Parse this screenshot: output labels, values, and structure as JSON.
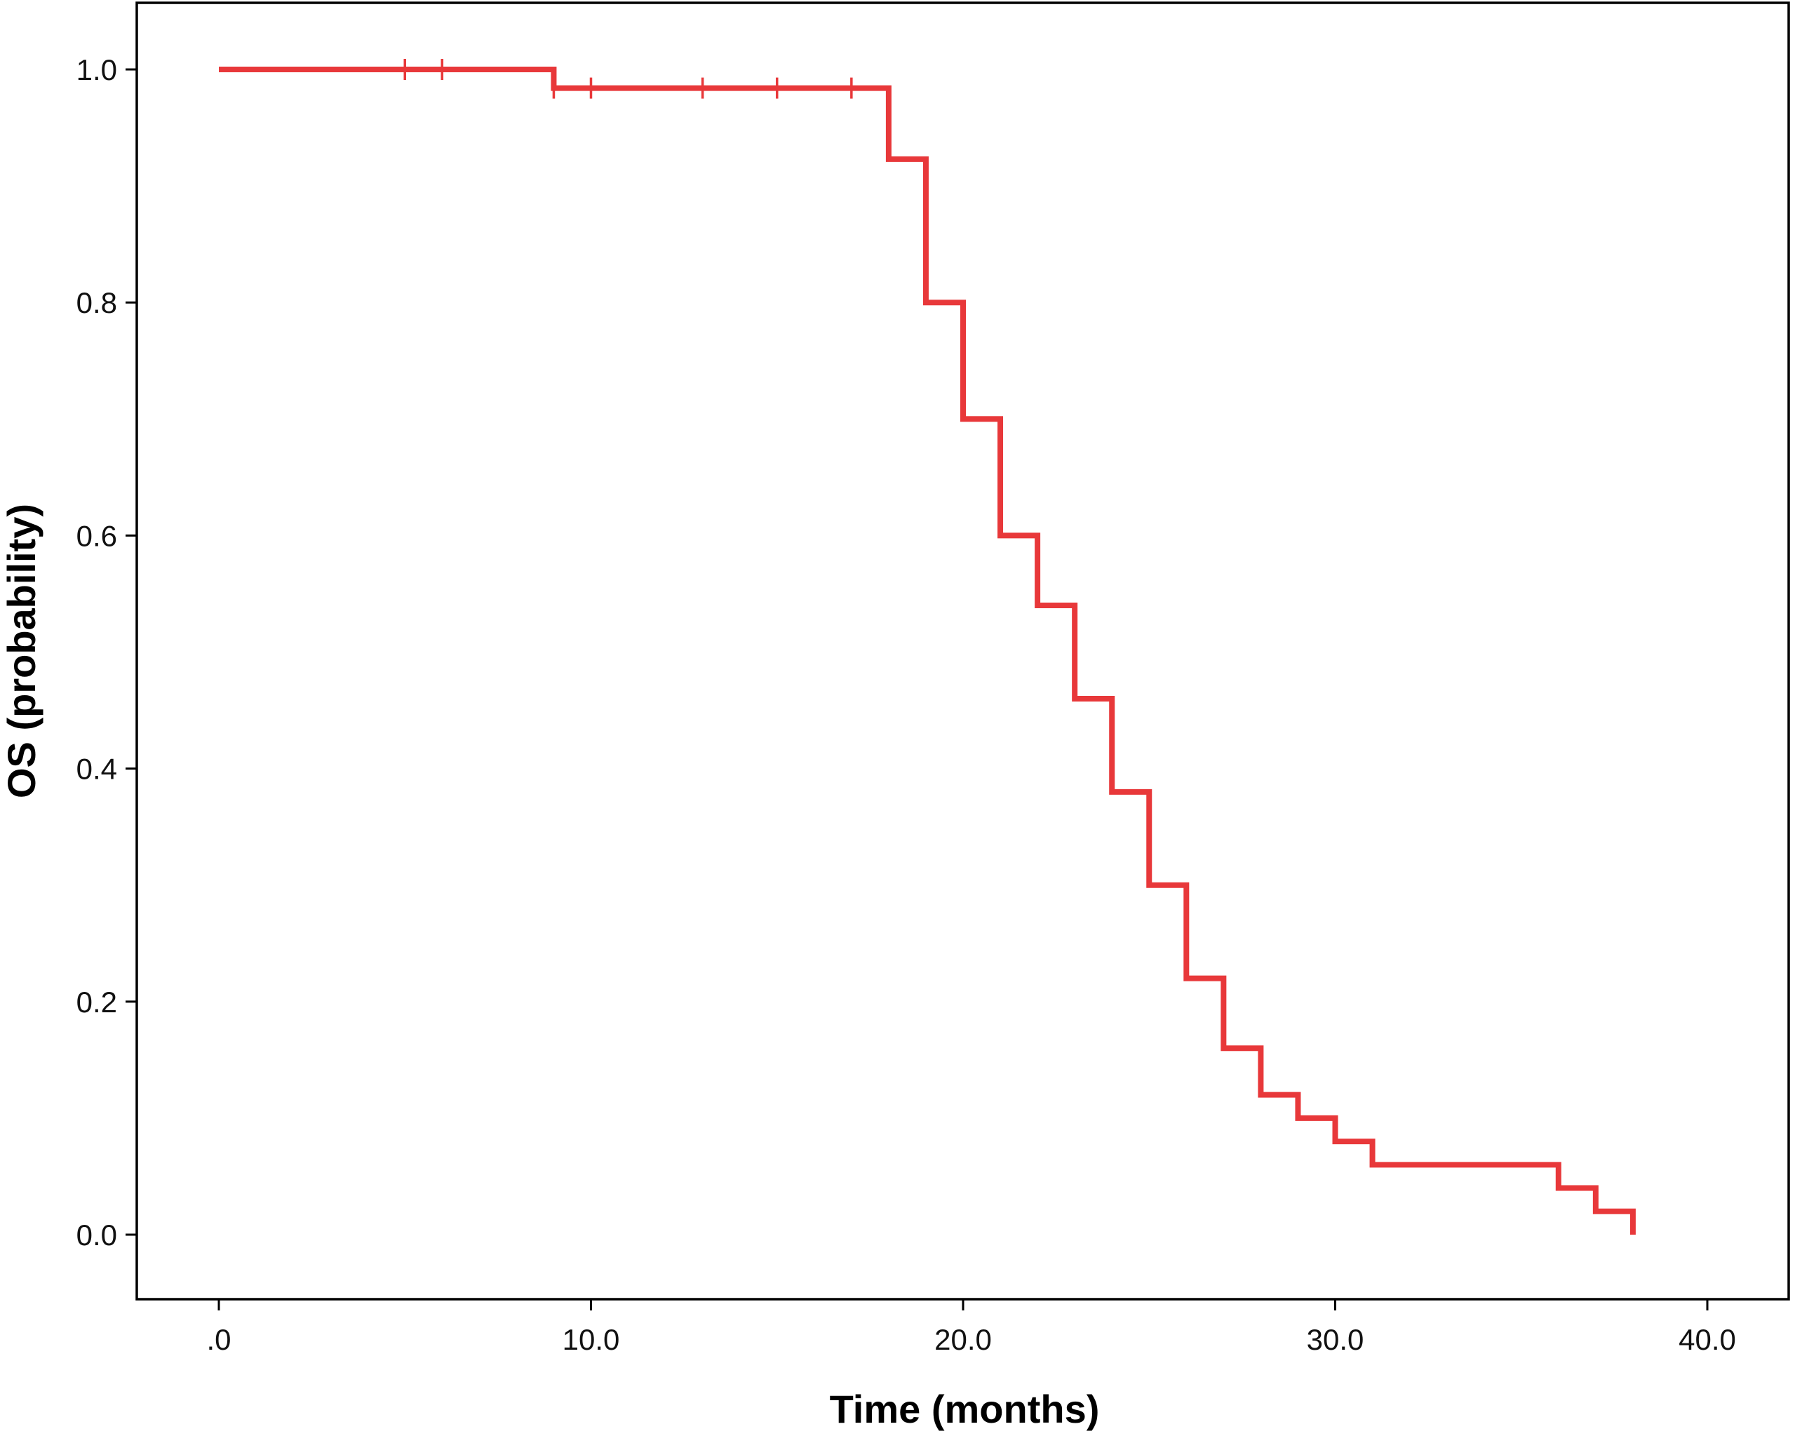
{
  "chart_data": {
    "type": "line",
    "subtype": "kaplan-meier-step",
    "title": "",
    "xlabel": "Time (months)",
    "ylabel": "OS (probability)",
    "xlim": [
      0,
      40
    ],
    "ylim": [
      0,
      1
    ],
    "x_ticks": [
      0,
      10,
      20,
      30,
      40
    ],
    "x_tick_labels": [
      ".0",
      "10.0",
      "20.0",
      "30.0",
      "40.0"
    ],
    "y_ticks": [
      0,
      0.2,
      0.4,
      0.6,
      0.8,
      1.0
    ],
    "y_tick_labels": [
      "0.0",
      "0.2",
      "0.4",
      "0.6",
      "0.8",
      "1.0"
    ],
    "grid": false,
    "legend": "none",
    "series": [
      {
        "color": "#e8383a",
        "steps": [
          [
            0,
            1.0
          ],
          [
            9,
            0.984
          ],
          [
            18,
            0.923
          ],
          [
            19,
            0.8
          ],
          [
            20,
            0.7
          ],
          [
            21,
            0.6
          ],
          [
            22,
            0.54
          ],
          [
            23,
            0.46
          ],
          [
            24,
            0.38
          ],
          [
            25,
            0.3
          ],
          [
            26,
            0.22
          ],
          [
            27,
            0.16
          ],
          [
            28,
            0.12
          ],
          [
            29,
            0.1
          ],
          [
            30,
            0.08
          ],
          [
            31,
            0.06
          ],
          [
            36,
            0.04
          ],
          [
            37,
            0.02
          ],
          [
            38,
            0.0
          ]
        ],
        "censored": [
          [
            5,
            1.0
          ],
          [
            6,
            1.0
          ],
          [
            9,
            0.984
          ],
          [
            10,
            0.984
          ],
          [
            13,
            0.984
          ],
          [
            15,
            0.984
          ],
          [
            17,
            0.984
          ]
        ]
      }
    ]
  }
}
